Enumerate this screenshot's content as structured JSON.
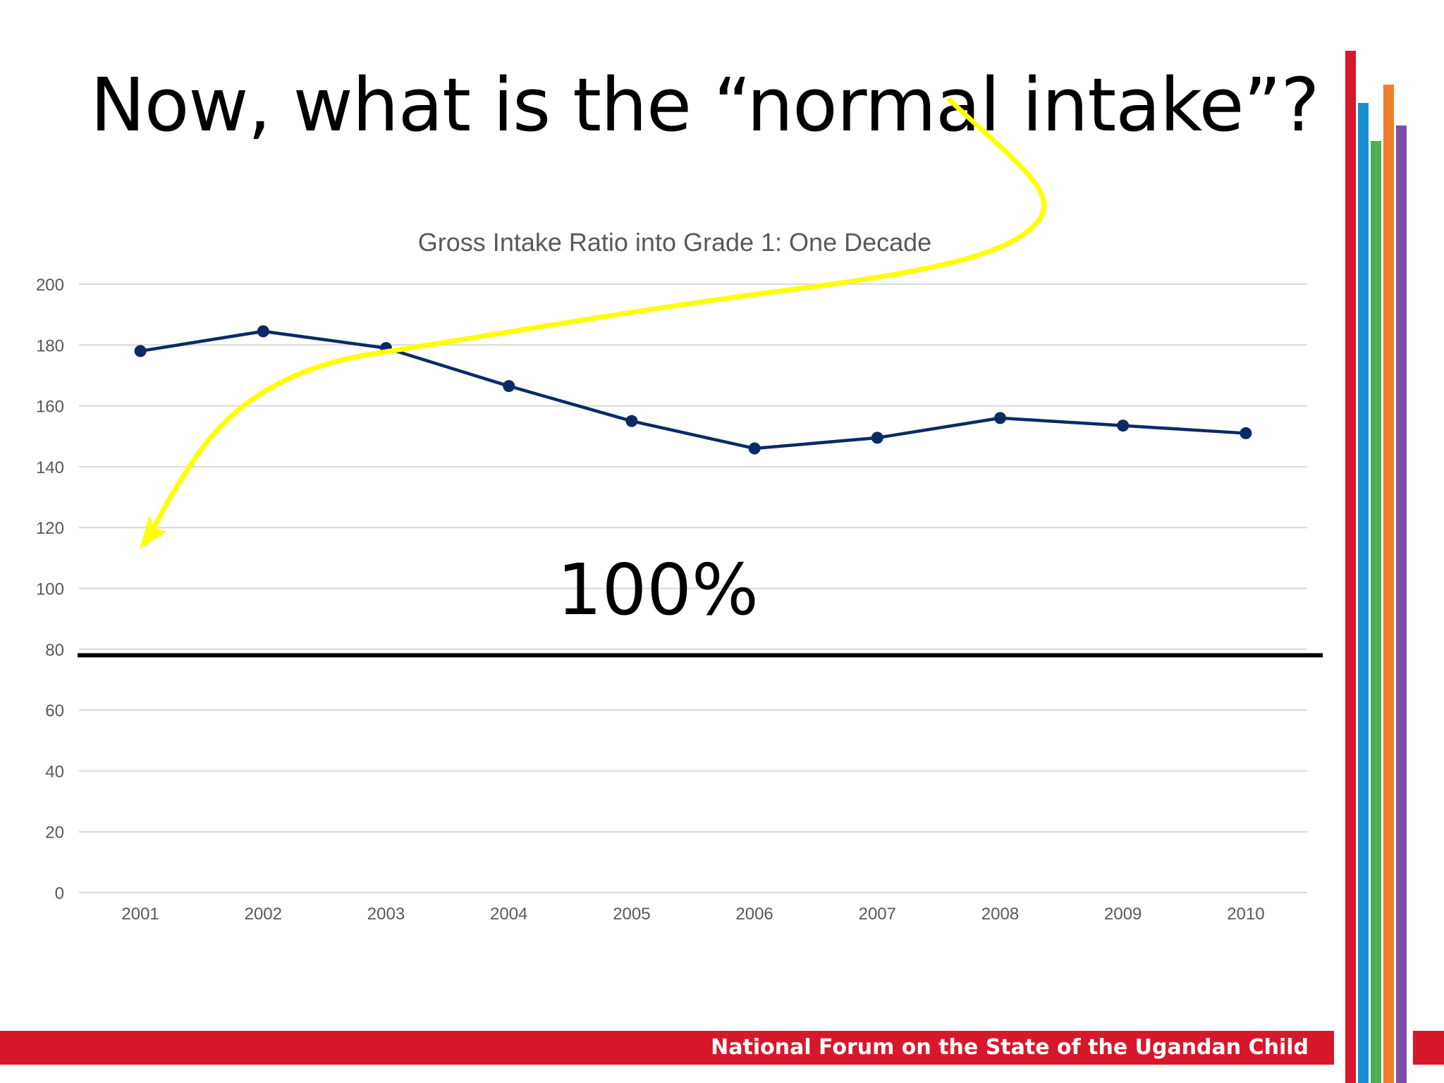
{
  "slide": {
    "title": "Now, what is the “normal intake”?",
    "big_label": "100%",
    "footer_text": "National Forum on the State of the Ugandan Child"
  },
  "colors": {
    "line": "#0c2a66",
    "grid": "#d9d9d9",
    "axis_text": "#595959",
    "title_text": "#595959",
    "arrow": "#ffff00",
    "reference_line": "#000000",
    "footer": "#d7182a",
    "stripes": [
      "#d7182a",
      "#1b8fd2",
      "#4caf50",
      "#f07f2a",
      "#7b4fa8"
    ]
  },
  "chart_data": {
    "type": "line",
    "title": "Gross Intake Ratio into Grade 1: One Decade",
    "categories": [
      "2001",
      "2002",
      "2003",
      "2004",
      "2005",
      "2006",
      "2007",
      "2008",
      "2009",
      "2010"
    ],
    "series": [
      {
        "values": [
          178,
          184.5,
          179,
          166.5,
          155,
          146,
          149.5,
          156,
          153.5,
          151
        ]
      }
    ],
    "y_ticks": [
      "0",
      "20",
      "40",
      "60",
      "80",
      "100",
      "120",
      "140",
      "160",
      "180",
      "200"
    ],
    "ylim": [
      0,
      200
    ],
    "grid": true,
    "reference_line_value": 78
  }
}
